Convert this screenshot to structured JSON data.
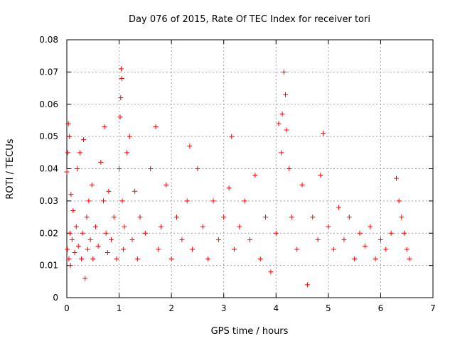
{
  "chart_data": {
    "type": "scatter",
    "title": "Day 076 of 2015, Rate Of TEC Index for receiver tori",
    "xlabel": "GPS time / hours",
    "ylabel": "ROTI / TECUs",
    "xlim": [
      0,
      7
    ],
    "ylim": [
      0,
      0.08
    ],
    "xticks": [
      0,
      1,
      2,
      3,
      4,
      5,
      6,
      7
    ],
    "xtick_labels": [
      "0",
      "1",
      "2",
      "3",
      "4",
      "5",
      "6",
      "7"
    ],
    "yticks": [
      0,
      0.01,
      0.02,
      0.03,
      0.04,
      0.05,
      0.06,
      0.07,
      0.08
    ],
    "ytick_labels": [
      "0",
      "0.01",
      "0.02",
      "0.03",
      "0.04",
      "0.05",
      "0.06",
      "0.07",
      "0.08"
    ],
    "grid": true,
    "marker": "+",
    "color": "#ff0000",
    "series": [
      {
        "name": "ROTI",
        "x": [
          0.0,
          0.01,
          0.02,
          0.03,
          0.04,
          0.05,
          0.06,
          0.07,
          0.08,
          0.1,
          0.12,
          0.15,
          0.18,
          0.2,
          0.22,
          0.25,
          0.28,
          0.3,
          0.32,
          0.35,
          0.38,
          0.4,
          0.42,
          0.45,
          0.48,
          0.5,
          0.55,
          0.6,
          0.65,
          0.7,
          0.72,
          0.75,
          0.78,
          0.8,
          0.85,
          0.9,
          0.95,
          1.0,
          1.02,
          1.03,
          1.04,
          1.05,
          1.06,
          1.08,
          1.1,
          1.15,
          1.2,
          1.25,
          1.3,
          1.35,
          1.4,
          1.5,
          1.6,
          1.7,
          1.75,
          1.8,
          1.9,
          2.0,
          2.1,
          2.2,
          2.3,
          2.35,
          2.4,
          2.5,
          2.6,
          2.7,
          2.8,
          2.9,
          3.0,
          3.1,
          3.15,
          3.2,
          3.3,
          3.4,
          3.5,
          3.6,
          3.7,
          3.8,
          3.9,
          4.0,
          4.05,
          4.1,
          4.12,
          4.15,
          4.18,
          4.2,
          4.25,
          4.3,
          4.4,
          4.5,
          4.6,
          4.7,
          4.8,
          4.85,
          4.9,
          5.0,
          5.1,
          5.2,
          5.3,
          5.4,
          5.5,
          5.6,
          5.7,
          5.8,
          5.9,
          6.0,
          6.1,
          6.2,
          6.3,
          6.35,
          6.4,
          6.45,
          6.5,
          6.55
        ],
        "y": [
          0.039,
          0.015,
          0.045,
          0.054,
          0.012,
          0.05,
          0.02,
          0.01,
          0.032,
          0.018,
          0.027,
          0.014,
          0.022,
          0.04,
          0.016,
          0.045,
          0.012,
          0.02,
          0.049,
          0.006,
          0.025,
          0.015,
          0.03,
          0.018,
          0.035,
          0.012,
          0.022,
          0.016,
          0.042,
          0.03,
          0.053,
          0.02,
          0.014,
          0.033,
          0.018,
          0.025,
          0.012,
          0.04,
          0.056,
          0.062,
          0.071,
          0.068,
          0.03,
          0.015,
          0.022,
          0.045,
          0.05,
          0.018,
          0.033,
          0.012,
          0.025,
          0.02,
          0.04,
          0.053,
          0.015,
          0.022,
          0.035,
          0.012,
          0.025,
          0.018,
          0.03,
          0.047,
          0.015,
          0.04,
          0.022,
          0.012,
          0.03,
          0.018,
          0.025,
          0.034,
          0.05,
          0.015,
          0.022,
          0.03,
          0.018,
          0.038,
          0.012,
          0.025,
          0.008,
          0.02,
          0.054,
          0.045,
          0.057,
          0.07,
          0.063,
          0.052,
          0.04,
          0.025,
          0.015,
          0.035,
          0.004,
          0.025,
          0.018,
          0.038,
          0.051,
          0.022,
          0.015,
          0.028,
          0.018,
          0.025,
          0.012,
          0.02,
          0.016,
          0.022,
          0.012,
          0.018,
          0.015,
          0.02,
          0.037,
          0.03,
          0.025,
          0.02,
          0.015,
          0.012
        ]
      }
    ]
  }
}
